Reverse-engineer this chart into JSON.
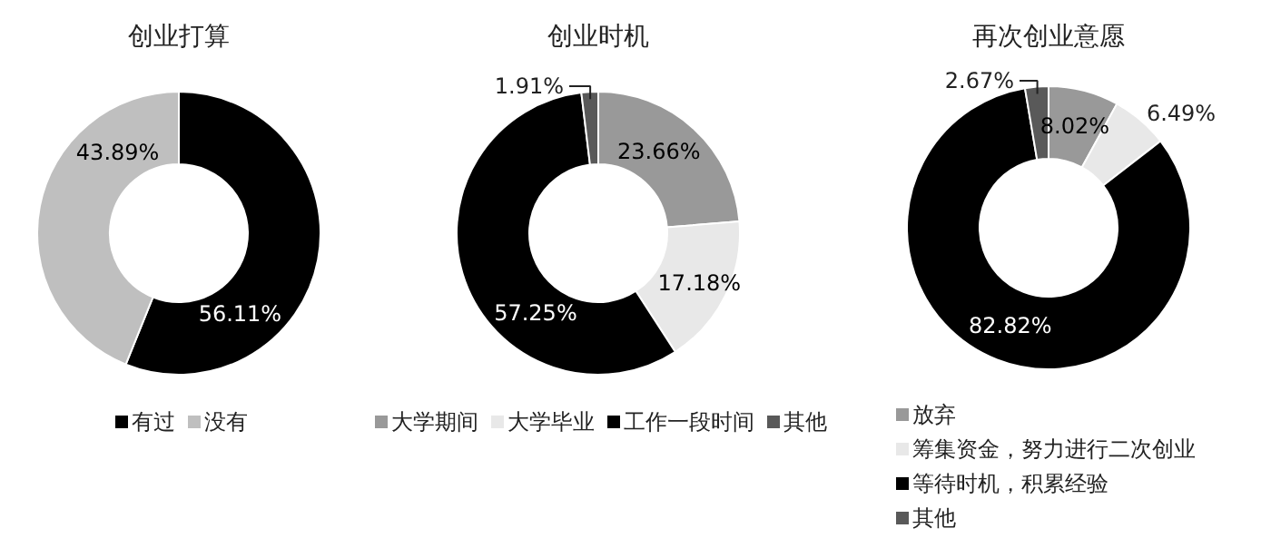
{
  "chart_data": [
    {
      "type": "donut",
      "title": "创业打算",
      "categories": [
        "有过",
        "没有"
      ],
      "values": [
        56.11,
        43.89
      ],
      "colors": [
        "#000000",
        "#bfbfbf"
      ],
      "value_labels": [
        "56.11%",
        "43.89%"
      ],
      "legend": "bottom"
    },
    {
      "type": "donut",
      "title": "创业时机",
      "categories": [
        "大学期间",
        "大学毕业",
        "工作一段时间",
        "其他"
      ],
      "values": [
        23.66,
        17.18,
        57.25,
        1.91
      ],
      "colors": [
        "#999999",
        "#e8e8e8",
        "#000000",
        "#595959"
      ],
      "value_labels": [
        "23.66%",
        "17.18%",
        "57.25%",
        "1.91%"
      ],
      "legend": "bottom"
    },
    {
      "type": "donut",
      "title": "再次创业意愿",
      "categories": [
        "放弃",
        "筹集资金，努力进行二次创业",
        "等待时机，积累经验",
        "其他"
      ],
      "values": [
        8.02,
        6.49,
        82.82,
        2.67
      ],
      "colors": [
        "#999999",
        "#e8e8e8",
        "#000000",
        "#595959"
      ],
      "value_labels": [
        "8.02%",
        "6.49%",
        "82.82%",
        "2.67%"
      ],
      "legend": "bottom"
    }
  ]
}
